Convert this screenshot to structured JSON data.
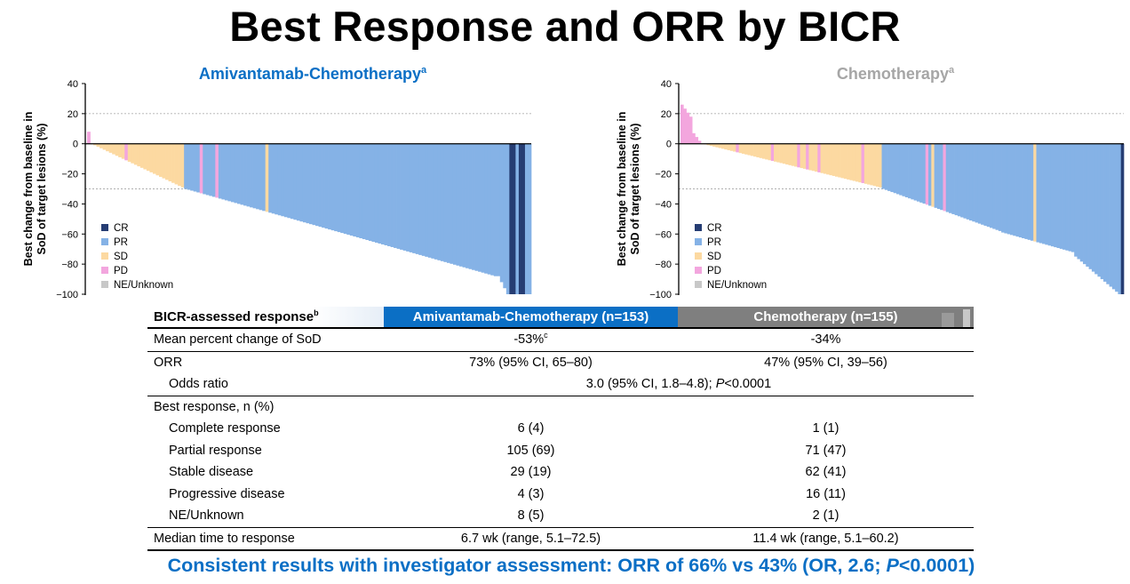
{
  "title": "Best Response and ORR by BICR",
  "chart_data": [
    {
      "type": "bar",
      "title": "Amivantamab-Chemotherapy",
      "title_superscript": "a",
      "title_color": "#0b6fc5",
      "ylabel_line1": "Best change from baseline in",
      "ylabel_line2": "SoD of target lesions (%)",
      "ylim": [
        -100,
        40
      ],
      "yticks": [
        "40",
        "20",
        "0",
        "−20",
        "−40",
        "−60",
        "−80",
        "−100"
      ],
      "reference_lines": [
        20,
        -30
      ],
      "legend": [
        {
          "key": "CR",
          "label": "CR",
          "color": "#263d73"
        },
        {
          "key": "PR",
          "label": "PR",
          "color": "#85b2e6"
        },
        {
          "key": "SD",
          "label": "SD",
          "color": "#fcd9a1"
        },
        {
          "key": "PD",
          "label": "PD",
          "color": "#f3a6de"
        },
        {
          "key": "NE",
          "label": "NE/Unknown",
          "color": "#c8c8c8"
        }
      ],
      "segments": [
        {
          "from": 8,
          "to": 0,
          "count": 2,
          "cat": "PD"
        },
        {
          "from": -1,
          "to": -29,
          "count": 29,
          "cat": "SD"
        },
        {
          "from": -30,
          "to": -88,
          "count": 100,
          "cat": "PR"
        },
        {
          "from": -88,
          "to": -100,
          "count": 4,
          "cat": "PR"
        },
        {
          "from": -100,
          "to": -100,
          "count": 5,
          "cat": "CR"
        },
        {
          "from": -100,
          "to": -100,
          "count": 2,
          "cat": "PR"
        }
      ],
      "overrides": [
        {
          "i": 1,
          "cat": "SD"
        },
        {
          "i": 12,
          "cat": "PD"
        },
        {
          "i": 36,
          "cat": "PD"
        },
        {
          "i": 41,
          "cat": "PD"
        },
        {
          "i": 57,
          "cat": "SD"
        },
        {
          "i": 135,
          "cat": "CR"
        },
        {
          "i": 137,
          "cat": "PR"
        },
        {
          "i": 140,
          "cat": "PR"
        }
      ]
    },
    {
      "type": "bar",
      "title": "Chemotherapy",
      "title_superscript": "a",
      "title_color": "#a6a6a6",
      "ylabel_line1": "Best change from baseline in",
      "ylabel_line2": "SoD of target lesions (%)",
      "ylim": [
        -100,
        40
      ],
      "yticks": [
        "40",
        "20",
        "0",
        "−20",
        "−40",
        "−60",
        "−80",
        "−100"
      ],
      "reference_lines": [
        20,
        -30
      ],
      "legend": [
        {
          "key": "CR",
          "label": "CR",
          "color": "#263d73"
        },
        {
          "key": "PR",
          "label": "PR",
          "color": "#85b2e6"
        },
        {
          "key": "SD",
          "label": "SD",
          "color": "#fcd9a1"
        },
        {
          "key": "PD",
          "label": "PD",
          "color": "#f3a6de"
        },
        {
          "key": "NE",
          "label": "NE/Unknown",
          "color": "#c8c8c8"
        }
      ],
      "segments": [
        {
          "from": 26,
          "to": 18,
          "count": 4,
          "cat": "PD"
        },
        {
          "from": 7,
          "to": 2,
          "count": 3,
          "cat": "PD"
        },
        {
          "from": 0,
          "to": -29,
          "count": 62,
          "cat": "SD"
        },
        {
          "from": -30,
          "to": -58,
          "count": 41,
          "cat": "PR"
        },
        {
          "from": -59,
          "to": -72,
          "count": 25,
          "cat": "PR"
        },
        {
          "from": -75,
          "to": -100,
          "count": 16,
          "cat": "PR"
        },
        {
          "from": -100,
          "to": -100,
          "count": 1,
          "cat": "CR"
        }
      ],
      "overrides": [
        {
          "i": 19,
          "cat": "PD"
        },
        {
          "i": 31,
          "cat": "PD"
        },
        {
          "i": 40,
          "cat": "PD"
        },
        {
          "i": 43,
          "cat": "PD"
        },
        {
          "i": 47,
          "cat": "PD"
        },
        {
          "i": 62,
          "cat": "PD"
        },
        {
          "i": 84,
          "cat": "PD"
        },
        {
          "i": 86,
          "cat": "SD"
        },
        {
          "i": 90,
          "cat": "PD"
        },
        {
          "i": 121,
          "cat": "SD"
        }
      ]
    }
  ],
  "table": {
    "header": {
      "label": "BICR-assessed response",
      "label_sup": "b",
      "col1": "Amivantamab-Chemotherapy (n=153)",
      "col2": "Chemotherapy (n=155)"
    },
    "mean_change": {
      "label": "Mean percent change of SoD",
      "v1": "-53%",
      "v1_sup": "c",
      "v2": "-34%"
    },
    "orr": {
      "label": "ORR",
      "v1": "73% (95% CI, 65–80)",
      "v2": "47% (95% CI, 39–56)"
    },
    "odds": {
      "label": "Odds ratio",
      "value_a": "3.0 (95% CI, 1.8–4.8); ",
      "value_p": "P",
      "value_b": "<0.0001"
    },
    "best_response": {
      "label": "Best response, n (%)"
    },
    "rows": [
      {
        "label": "Complete response",
        "v1": "6 (4)",
        "v2": "1 (1)"
      },
      {
        "label": "Partial response",
        "v1": "105 (69)",
        "v2": "71 (47)"
      },
      {
        "label": "Stable disease",
        "v1": "29 (19)",
        "v2": "62 (41)"
      },
      {
        "label": "Progressive disease",
        "v1": "4 (3)",
        "v2": "16 (11)"
      },
      {
        "label": "NE/Unknown",
        "v1": "8 (5)",
        "v2": "2 (1)"
      }
    ],
    "median": {
      "label": "Median time to response",
      "v1": "6.7 wk (range, 5.1–72.5)",
      "v2": "11.4 wk (range, 5.1–60.2)"
    }
  },
  "footnote": {
    "text_a": "Consistent results with investigator assessment: ORR of 66% vs 43% (OR, 2.6; ",
    "text_p": "P",
    "text_b": "<0.0001)"
  }
}
